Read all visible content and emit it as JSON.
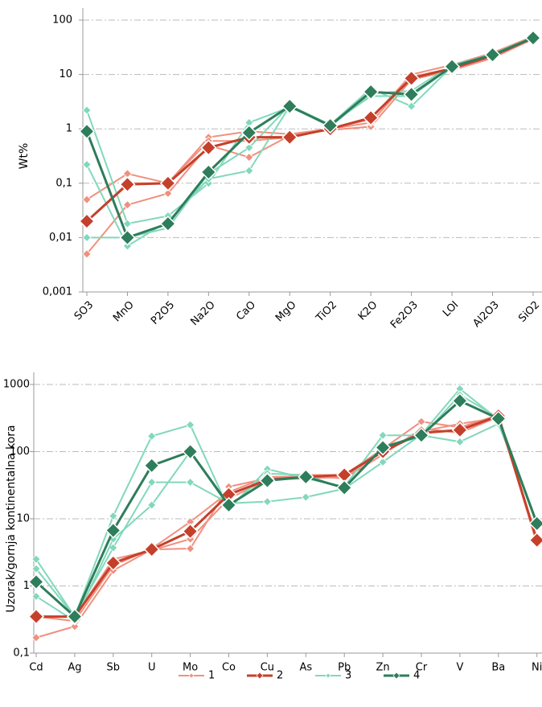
{
  "chart_data": [
    {
      "type": "line",
      "y_label": "Wt%",
      "log": true,
      "grid": true,
      "categories": [
        "SO3",
        "MnO",
        "P2O5",
        "Na2O",
        "CaO",
        "MgO",
        "TiO2",
        "K2O",
        "Fe2O3",
        "LOI",
        "Al2O3",
        "SiO2"
      ],
      "ylim": [
        0.001,
        100
      ],
      "yticks": [
        {
          "value": 0.001,
          "label": "0,001"
        },
        {
          "value": 0.01,
          "label": "0,01"
        },
        {
          "value": 0.1,
          "label": "0,1"
        },
        1,
        10,
        100
      ],
      "series": [
        {
          "color": "#f0907f",
          "lines": [
            [
              0.05,
              0.15,
              0.1,
              0.7,
              0.9,
              0.8,
              1,
              1.5,
              10,
              15,
              25,
              50
            ],
            [
              0.005,
              0.04,
              0.065,
              0.5,
              0.3,
              0.75,
              0.95,
              1.1,
              8,
              12,
              20,
              45
            ],
            [
              0.02,
              0.1,
              0.1,
              0.6,
              0.6,
              0.7,
              1,
              1.3,
              9,
              13,
              22,
              48
            ]
          ]
        },
        {
          "color": "#c5402b",
          "lines": [
            [
              0.02,
              0.095,
              0.1,
              0.45,
              0.7,
              0.7,
              1.0,
              1.6,
              8.5,
              13,
              22,
              47
            ]
          ]
        },
        {
          "color": "#82d8bb",
          "lines": [
            [
              2.2,
              0.018,
              0.025,
              0.1,
              1.3,
              2.5,
              1.2,
              5.5,
              2.6,
              14,
              24,
              48
            ],
            [
              0.22,
              0.007,
              0.02,
              0.12,
              0.17,
              2.6,
              1.1,
              4.5,
              5,
              15,
              23,
              46
            ],
            [
              0.01,
              0.01,
              0.015,
              0.15,
              0.45,
              2.7,
              1.2,
              4,
              4,
              14,
              23,
              47
            ]
          ]
        },
        {
          "color": "#2e7d5b",
          "lines": [
            [
              0.9,
              0.01,
              0.018,
              0.16,
              0.85,
              2.6,
              1.15,
              4.8,
              4.3,
              14,
              23,
              47
            ]
          ]
        }
      ]
    },
    {
      "type": "line",
      "y_label": "Uzorak/gornja kontinentalna kora",
      "log": true,
      "grid": true,
      "categories": [
        "Cd",
        "Ag",
        "Sb",
        "U",
        "Mo",
        "Co",
        "Cu",
        "As",
        "Pb",
        "Zn",
        "Cr",
        "V",
        "Ba",
        "Ni"
      ],
      "ylim": [
        0.1,
        1000
      ],
      "yticks": [
        {
          "value": 0.1,
          "label": "0,1"
        },
        1,
        10,
        100,
        1000
      ],
      "series": [
        {
          "name": "1",
          "color": "#f0907f",
          "lines": [
            [
              0.17,
              0.25,
              1.7,
              3.5,
              3.6,
              30,
              40,
              45,
              45,
              110,
              280,
              230,
              350,
              4.2
            ],
            [
              0.35,
              0.3,
              2,
              3.6,
              9,
              25,
              42,
              43,
              40,
              90,
              220,
              190,
              330,
              4.5
            ],
            [
              0.35,
              0.35,
              2.5,
              3.4,
              5,
              20,
              38,
              40,
              42,
              100,
              200,
              260,
              320,
              5
            ]
          ]
        },
        {
          "name": "2",
          "color": "#c5402b",
          "lines": [
            [
              0.35,
              0.35,
              2.2,
              3.5,
              6.5,
              23,
              38,
              42,
              45,
              100,
              190,
              210,
              340,
              4.8
            ]
          ]
        },
        {
          "name": "3",
          "color": "#82d8bb",
          "lines": [
            [
              2.5,
              0.35,
              11,
              170,
              250,
              14,
              55,
              40,
              30,
              175,
              175,
              140,
              260,
              9
            ],
            [
              1.8,
              0.35,
              3.7,
              35,
              35,
              17,
              18,
              21,
              28,
              70,
              180,
              860,
              300,
              8
            ],
            [
              0.7,
              0.3,
              5,
              16,
              100,
              15,
              47,
              45,
              28,
              120,
              165,
              700,
              320,
              8.5
            ]
          ]
        },
        {
          "name": "4",
          "color": "#2e7d5b",
          "lines": [
            [
              1.15,
              0.35,
              6.7,
              62,
              100,
              16,
              37,
              42,
              29,
              115,
              175,
              570,
              310,
              8.5
            ]
          ]
        }
      ]
    }
  ]
}
